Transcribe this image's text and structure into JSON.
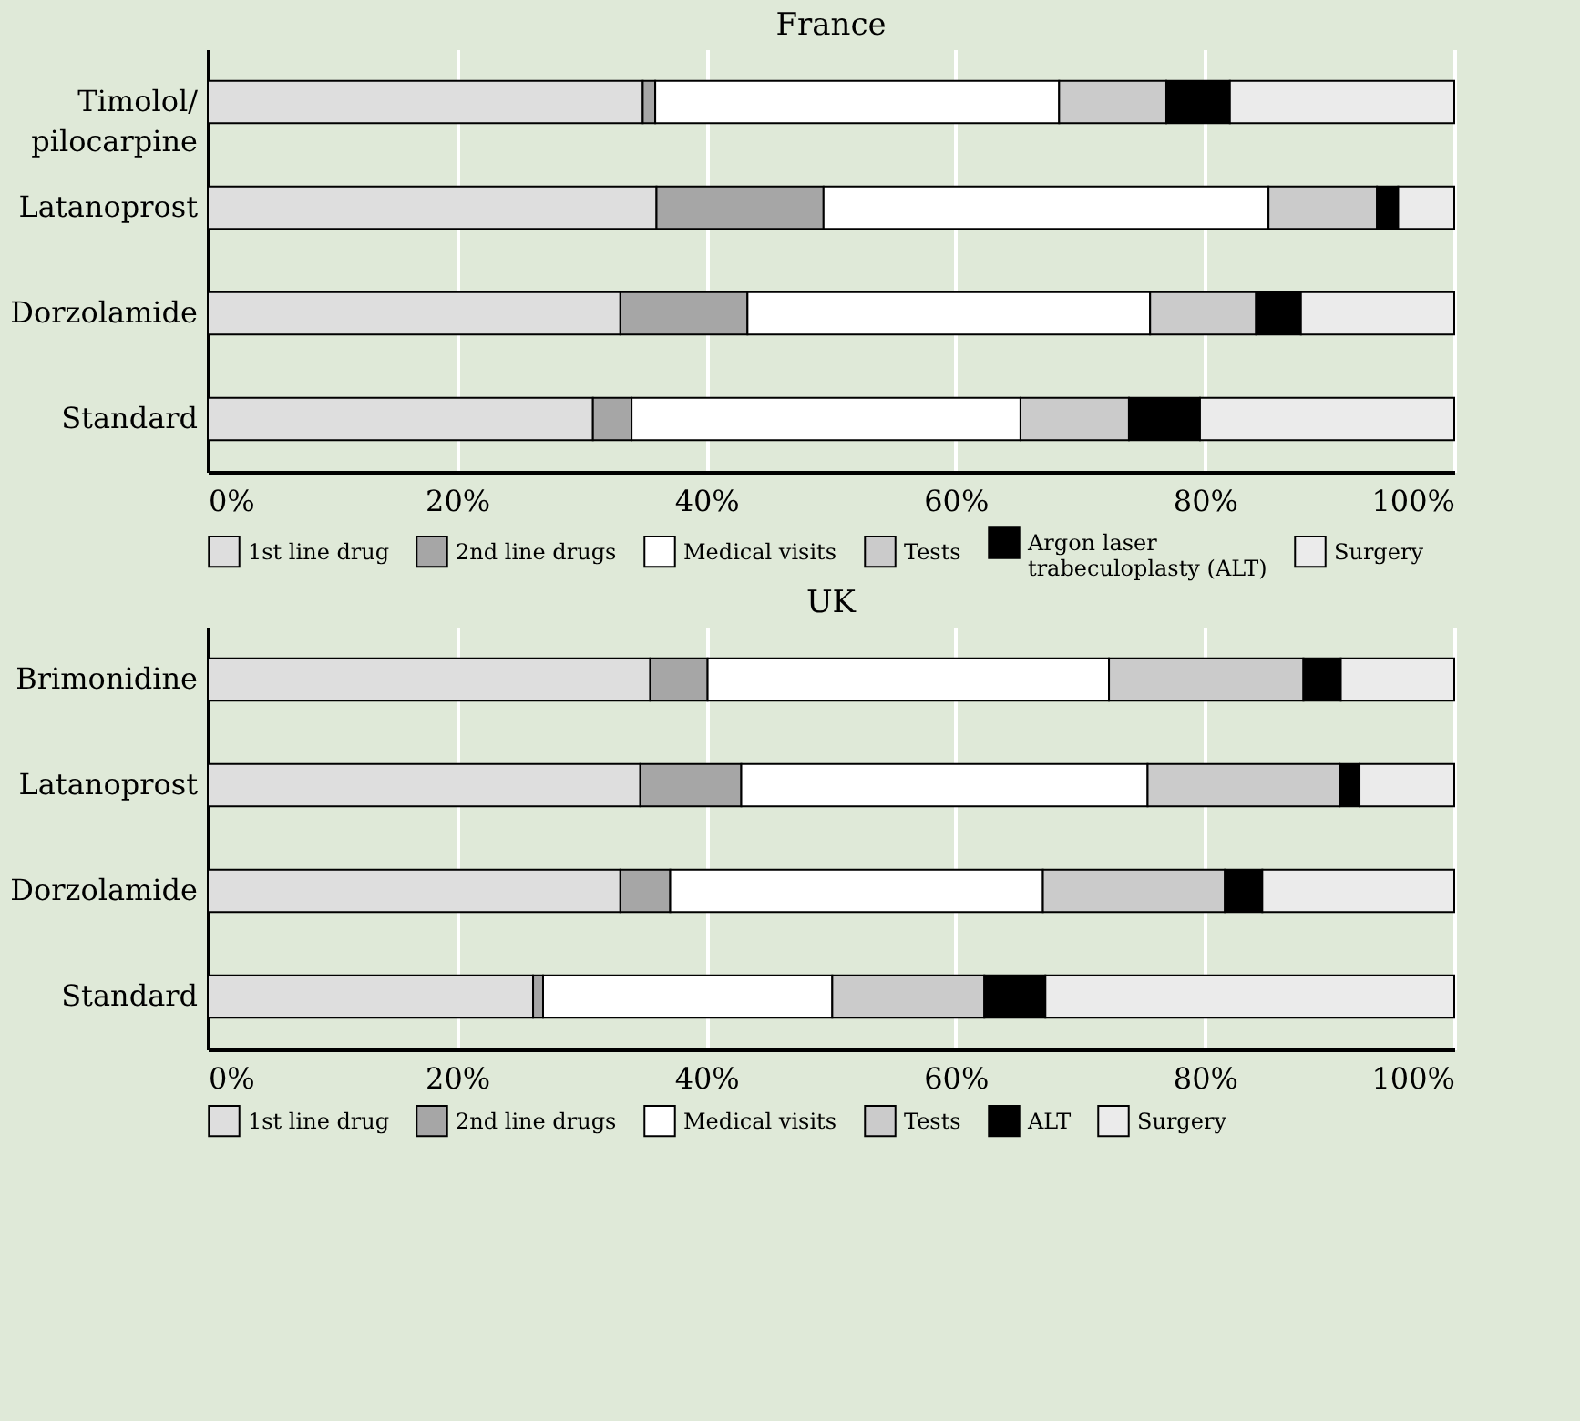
{
  "chart_data": [
    {
      "type": "bar",
      "title": "France",
      "orientation": "horizontal",
      "stacked": true,
      "grid": "x",
      "legend": "bottom",
      "categories": [
        "Timolol/pilocarpine",
        "Latanoprost",
        "Dorzolamide",
        "Standard"
      ],
      "xlim": [
        0,
        100
      ],
      "xticks": [
        {
          "value": 0,
          "label": "0%"
        },
        {
          "value": 20,
          "label": "20%"
        },
        {
          "value": 40,
          "label": "40%"
        },
        {
          "value": 60,
          "label": "60%"
        },
        {
          "value": 80,
          "label": "80%"
        },
        {
          "value": 100,
          "label": "100%"
        }
      ],
      "series": [
        {
          "name": "1st line drug",
          "color": "#dedede",
          "values": [
            34.9,
            36.0,
            33.1,
            30.9
          ]
        },
        {
          "name": "2nd line drugs",
          "color": "#a6a6a6",
          "values": [
            1.0,
            13.4,
            10.2,
            3.1
          ]
        },
        {
          "name": "Medical visits",
          "color": "#ffffff",
          "values": [
            32.4,
            35.7,
            32.3,
            31.2
          ]
        },
        {
          "name": "Tests",
          "color": "#cbcbcb",
          "values": [
            8.6,
            8.7,
            8.5,
            8.7
          ]
        },
        {
          "name": "Argon laser trabeculoplasty (ALT)",
          "color": "#000000",
          "values": [
            5.1,
            1.7,
            3.6,
            5.7
          ]
        },
        {
          "name": "Surgery",
          "color": "#ebebeb",
          "values": [
            18.0,
            4.5,
            12.3,
            20.4
          ]
        }
      ]
    },
    {
      "type": "bar",
      "title": "UK",
      "orientation": "horizontal",
      "stacked": true,
      "grid": "x",
      "legend": "bottom",
      "categories": [
        "Brimonidine",
        "Latanoprost",
        "Dorzolamide",
        "Standard"
      ],
      "xlim": [
        0,
        100
      ],
      "xticks": [
        {
          "value": 0,
          "label": "0%"
        },
        {
          "value": 20,
          "label": "20%"
        },
        {
          "value": 40,
          "label": "40%"
        },
        {
          "value": 60,
          "label": "60%"
        },
        {
          "value": 80,
          "label": "80%"
        },
        {
          "value": 100,
          "label": "100%"
        }
      ],
      "series": [
        {
          "name": "1st line drug",
          "color": "#dedede",
          "values": [
            35.5,
            34.7,
            33.1,
            26.1
          ]
        },
        {
          "name": "2nd line drugs",
          "color": "#a6a6a6",
          "values": [
            4.6,
            8.1,
            4.0,
            0.8
          ]
        },
        {
          "name": "Medical visits",
          "color": "#ffffff",
          "values": [
            32.2,
            32.6,
            29.9,
            23.2
          ]
        },
        {
          "name": "Tests",
          "color": "#cbcbcb",
          "values": [
            15.6,
            15.4,
            14.6,
            12.2
          ]
        },
        {
          "name": "ALT",
          "color": "#000000",
          "values": [
            3.0,
            1.6,
            3.0,
            4.9
          ]
        },
        {
          "name": "Surgery",
          "color": "#ebebeb",
          "values": [
            9.1,
            7.6,
            15.4,
            32.8
          ]
        }
      ]
    }
  ]
}
